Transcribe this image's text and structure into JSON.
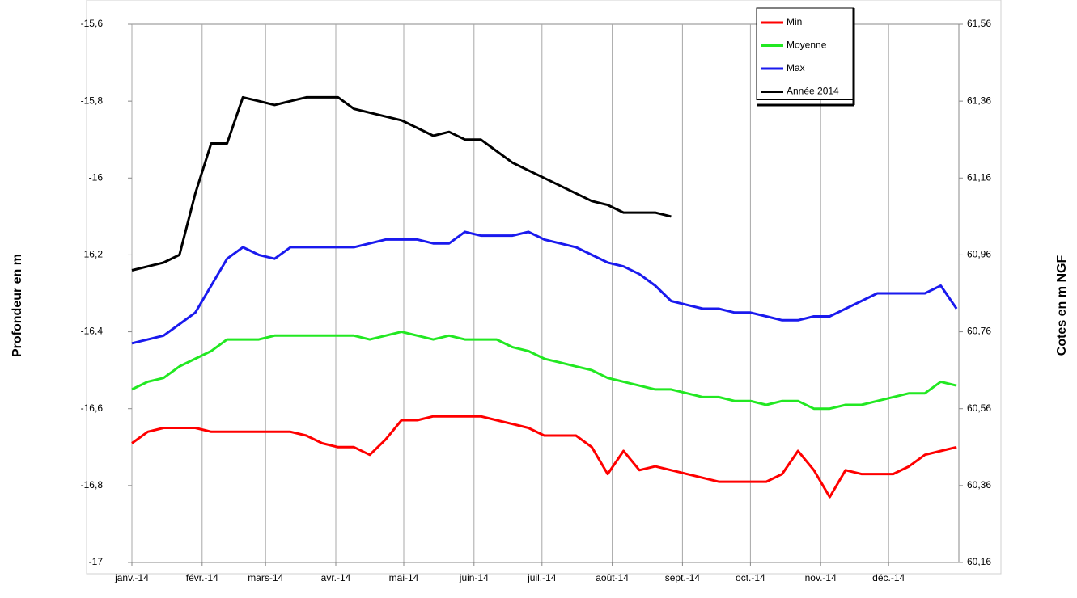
{
  "chart_data": {
    "type": "line",
    "ylabel": "Profondeur en m",
    "y2label": "Cotes en m NGF",
    "x": [
      0,
      7,
      14,
      21,
      28,
      35,
      42,
      49,
      56,
      63,
      70,
      77,
      84,
      91,
      98,
      105,
      112,
      119,
      126,
      133,
      140,
      147,
      154,
      161,
      168,
      175,
      182,
      189,
      196,
      203,
      210,
      217,
      224,
      231,
      238,
      245,
      252,
      259,
      266,
      273,
      280,
      287,
      294,
      301,
      308,
      315,
      322,
      329,
      336,
      343,
      350,
      357,
      364
    ],
    "xlim": [
      0,
      365
    ],
    "xticks": [
      {
        "value": 0,
        "label": "janv.-14"
      },
      {
        "value": 31,
        "label": "févr.-14"
      },
      {
        "value": 59,
        "label": "mars-14"
      },
      {
        "value": 90,
        "label": "avr.-14"
      },
      {
        "value": 120,
        "label": "mai-14"
      },
      {
        "value": 151,
        "label": "juin-14"
      },
      {
        "value": 181,
        "label": "juil.-14"
      },
      {
        "value": 212,
        "label": "août-14"
      },
      {
        "value": 243,
        "label": "sept.-14"
      },
      {
        "value": 273,
        "label": "oct.-14"
      },
      {
        "value": 304,
        "label": "nov.-14"
      },
      {
        "value": 334,
        "label": "déc.-14"
      }
    ],
    "ylim": [
      -17,
      -15.6
    ],
    "yticks": [
      {
        "value": -15.6,
        "label": "-15,6"
      },
      {
        "value": -15.8,
        "label": "-15,8"
      },
      -16,
      {
        "value": -16.2,
        "label": "-16,2"
      },
      {
        "value": -16.4,
        "label": "-16,4"
      },
      {
        "value": -16.6,
        "label": "-16,6"
      },
      {
        "value": -16.8,
        "label": "-16,8"
      },
      -17
    ],
    "y2lim": [
      60.16,
      61.56
    ],
    "y2ticks": [
      {
        "value": 61.56,
        "label": "61,56"
      },
      {
        "value": 61.36,
        "label": "61,36"
      },
      {
        "value": 61.16,
        "label": "61,16"
      },
      {
        "value": 60.96,
        "label": "60,96"
      },
      {
        "value": 60.76,
        "label": "60,76"
      },
      {
        "value": 60.56,
        "label": "60,56"
      },
      {
        "value": 60.36,
        "label": "60,36"
      },
      {
        "value": 60.16,
        "label": "60,16"
      }
    ],
    "grid": "x",
    "legend": "top-right",
    "series": [
      {
        "name": "Min",
        "color": "#ff0000",
        "values": [
          -16.69,
          -16.66,
          -16.65,
          -16.65,
          -16.65,
          -16.66,
          -16.66,
          -16.66,
          -16.66,
          -16.66,
          -16.66,
          -16.67,
          -16.69,
          -16.7,
          -16.7,
          -16.72,
          -16.68,
          -16.63,
          -16.63,
          -16.62,
          -16.62,
          -16.62,
          -16.62,
          -16.63,
          -16.64,
          -16.65,
          -16.67,
          -16.67,
          -16.67,
          -16.7,
          -16.77,
          -16.71,
          -16.76,
          -16.75,
          -16.76,
          -16.77,
          -16.78,
          -16.79,
          -16.79,
          -16.79,
          -16.79,
          -16.77,
          -16.71,
          -16.76,
          -16.83,
          -16.76,
          -16.77,
          -16.77,
          -16.77,
          -16.75,
          -16.72,
          -16.71,
          -16.7
        ]
      },
      {
        "name": "Moyenne",
        "color": "#22e822",
        "values": [
          -16.55,
          -16.53,
          -16.52,
          -16.49,
          -16.47,
          -16.45,
          -16.42,
          -16.42,
          -16.42,
          -16.41,
          -16.41,
          -16.41,
          -16.41,
          -16.41,
          -16.41,
          -16.42,
          -16.41,
          -16.4,
          -16.41,
          -16.42,
          -16.41,
          -16.42,
          -16.42,
          -16.42,
          -16.44,
          -16.45,
          -16.47,
          -16.48,
          -16.49,
          -16.5,
          -16.52,
          -16.53,
          -16.54,
          -16.55,
          -16.55,
          -16.56,
          -16.57,
          -16.57,
          -16.58,
          -16.58,
          -16.59,
          -16.58,
          -16.58,
          -16.6,
          -16.6,
          -16.59,
          -16.59,
          -16.58,
          -16.57,
          -16.56,
          -16.56,
          -16.53,
          -16.54
        ]
      },
      {
        "name": "Max",
        "color": "#1a1aee",
        "values": [
          -16.43,
          -16.42,
          -16.41,
          -16.38,
          -16.35,
          -16.28,
          -16.21,
          -16.18,
          -16.2,
          -16.21,
          -16.18,
          -16.18,
          -16.18,
          -16.18,
          -16.18,
          -16.17,
          -16.16,
          -16.16,
          -16.16,
          -16.17,
          -16.17,
          -16.14,
          -16.15,
          -16.15,
          -16.15,
          -16.14,
          -16.16,
          -16.17,
          -16.18,
          -16.2,
          -16.22,
          -16.23,
          -16.25,
          -16.28,
          -16.32,
          -16.33,
          -16.34,
          -16.34,
          -16.35,
          -16.35,
          -16.36,
          -16.37,
          -16.37,
          -16.36,
          -16.36,
          -16.34,
          -16.32,
          -16.3,
          -16.3,
          -16.3,
          -16.3,
          -16.28,
          -16.34
        ]
      },
      {
        "name": "Année 2014",
        "color": "#000000",
        "values": [
          -16.24,
          -16.23,
          -16.22,
          -16.2,
          -16.04,
          -15.91,
          -15.91,
          -15.79,
          -15.8,
          -15.81,
          -15.8,
          -15.79,
          -15.79,
          -15.79,
          -15.82,
          -15.83,
          -15.84,
          -15.85,
          -15.87,
          -15.89,
          -15.88,
          -15.9,
          -15.9,
          -15.93,
          -15.96,
          -15.98,
          -16,
          -16.02,
          -16.04,
          -16.06,
          -16.07,
          -16.09,
          -16.09,
          -16.09,
          -16.1,
          null,
          null,
          null,
          null,
          null,
          null,
          null,
          null,
          null,
          null,
          null,
          null,
          null,
          null,
          null,
          null,
          null,
          null
        ]
      }
    ]
  }
}
